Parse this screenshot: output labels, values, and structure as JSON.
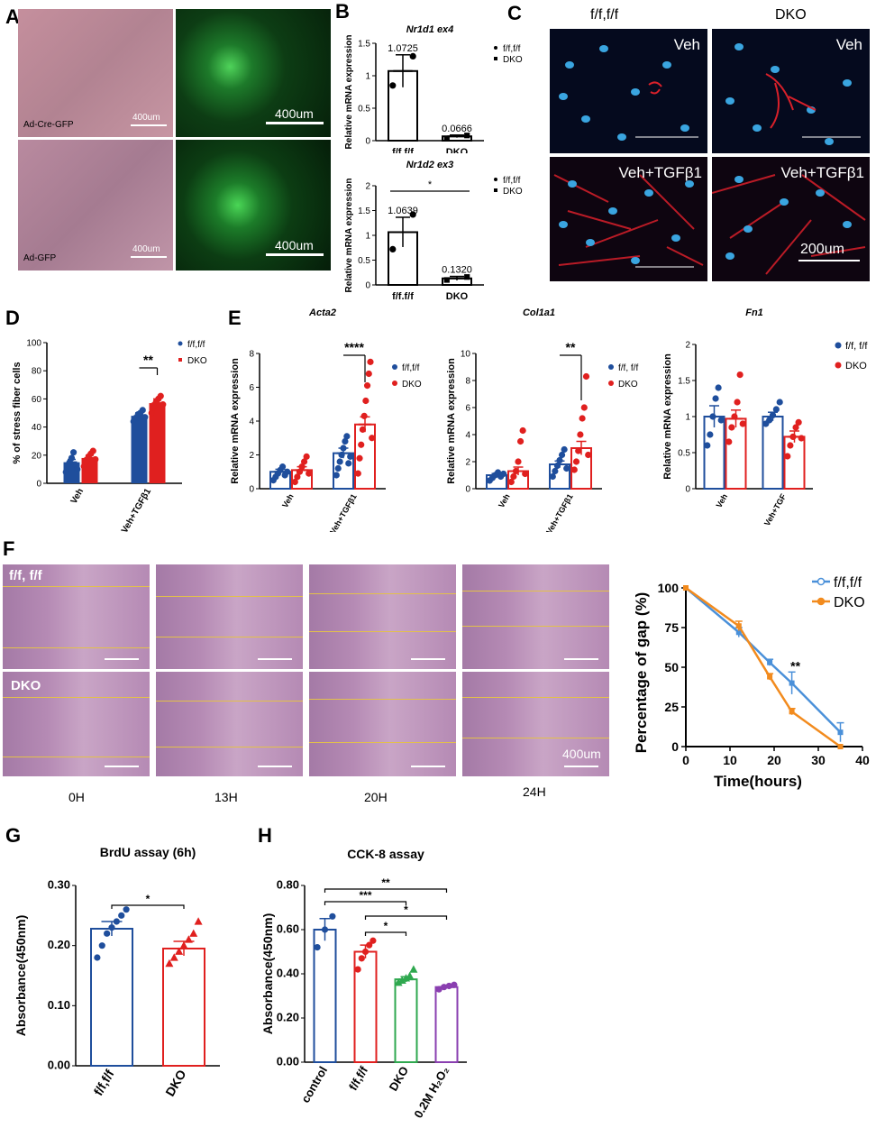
{
  "panel_letters": [
    "A",
    "B",
    "C",
    "D",
    "E",
    "F",
    "G",
    "H"
  ],
  "panel_a": {
    "tiles": [
      {
        "label": "Ad-Cre-GFP",
        "scale": "400um"
      },
      {
        "label": "",
        "scale": "400um"
      },
      {
        "label": "Ad-GFP",
        "scale": "400um"
      },
      {
        "label": "",
        "scale": "400um"
      }
    ]
  },
  "panel_c": {
    "col_headers": [
      "f/f,f/f",
      "DKO"
    ],
    "tiles": [
      {
        "label": "Veh",
        "scale": ""
      },
      {
        "label": "Veh",
        "scale": ""
      },
      {
        "label": "Veh+TGFβ1",
        "scale": ""
      },
      {
        "label": "Veh+TGFβ1",
        "scale": "200um"
      }
    ],
    "colors": {
      "stain_red": "#d8202a",
      "nuclei_blue": "#3aa5e0",
      "background": "#050a1e"
    }
  },
  "panel_f": {
    "row_labels": [
      "f/f, f/f",
      "DKO"
    ],
    "time_labels": [
      "0H",
      "13H",
      "20H",
      "24H"
    ],
    "scale": "400um",
    "colors": {
      "tissue": "#b58ab4",
      "line": "#e3c04a"
    }
  },
  "colors": {
    "blue": "#1f4e9c",
    "red": "#e0201f",
    "green": "#2fa84f",
    "purple": "#8a3fb0",
    "light_blue": "#4a90d9",
    "orange": "#f28b1e"
  },
  "chart_data": [
    {
      "id": "B-top",
      "type": "bar",
      "title": "Nr1d1 ex4",
      "categories": [
        "f/f,f/f",
        "DKO"
      ],
      "values": [
        1.0725,
        0.0666
      ],
      "data_labels": [
        "1.0725",
        "0.0666"
      ],
      "errors": [
        0.25,
        0.02
      ],
      "points": [
        [
          0.85,
          1.3
        ],
        [
          0.03,
          0.08
        ]
      ],
      "ylabel": "Relative mRNA expression",
      "ylim": [
        0,
        1.5
      ],
      "yticks": [
        0,
        0.5,
        1.0,
        1.5
      ],
      "legend": [
        "f/f,f/f",
        "DKO"
      ],
      "legend_position": "top-right",
      "significance": []
    },
    {
      "id": "B-bottom",
      "type": "bar",
      "title": "Nr1d2 ex3",
      "categories": [
        "f/f,f/f",
        "DKO"
      ],
      "values": [
        1.0639,
        0.132
      ],
      "data_labels": [
        "1.0639",
        "0.1320"
      ],
      "errors": [
        0.3,
        0.04
      ],
      "points": [
        [
          0.72,
          1.42
        ],
        [
          0.1,
          0.16
        ]
      ],
      "ylabel": "Relative mRNA expression",
      "ylim": [
        0,
        2.0
      ],
      "yticks": [
        0,
        0.5,
        1.0,
        1.5,
        2.0
      ],
      "legend": [
        "f/f,f/f",
        "DKO"
      ],
      "legend_position": "top-right",
      "significance": [
        {
          "from": 0,
          "to": 1,
          "text": "*"
        }
      ]
    },
    {
      "id": "D",
      "type": "bar",
      "categories": [
        "Veh",
        "Veh+TGFβ1"
      ],
      "series": [
        {
          "name": "f/f,f/f",
          "values": [
            15,
            48
          ],
          "errors": [
            2,
            2
          ],
          "points": [
            [
              8,
              12,
              15,
              18,
              22,
              13,
              10
            ],
            [
              44,
              46,
              49,
              50,
              52,
              47
            ]
          ]
        },
        {
          "name": "DKO",
          "values": [
            18,
            57
          ],
          "errors": [
            2,
            3
          ],
          "points": [
            [
              12,
              15,
              19,
              21,
              23,
              17
            ],
            [
              50,
              54,
              58,
              60,
              62,
              56
            ]
          ]
        }
      ],
      "ylabel": "% of stress fiber cells",
      "ylim": [
        0,
        100
      ],
      "yticks": [
        0,
        20,
        40,
        60,
        80,
        100
      ],
      "legend_position": "top-right",
      "significance": [
        {
          "group": 1,
          "text": "**"
        }
      ]
    },
    {
      "id": "E-Acta2",
      "type": "bar",
      "title": "Acta2",
      "categories": [
        "Veh",
        "Veh+TGFβ1"
      ],
      "series": [
        {
          "name": "f/f,f/f",
          "values": [
            1.0,
            2.1
          ],
          "errors": [
            0.15,
            0.3
          ],
          "points": [
            [
              0.5,
              0.7,
              0.9,
              1.1,
              1.3,
              0.8,
              1.0
            ],
            [
              0.8,
              1.2,
              1.6,
              2.0,
              2.4,
              2.8,
              3.1,
              1.5,
              1.9
            ]
          ]
        },
        {
          "name": "DKO",
          "values": [
            1.1,
            3.8
          ],
          "errors": [
            0.2,
            0.45
          ],
          "points": [
            [
              0.4,
              0.7,
              1.0,
              1.3,
              1.6,
              1.9,
              0.9
            ],
            [
              0.9,
              1.8,
              2.6,
              3.5,
              4.3,
              5.2,
              6.1,
              6.8,
              7.5,
              3.0
            ]
          ]
        }
      ],
      "ylabel": "Relative mRNA expression",
      "ylim": [
        0,
        8
      ],
      "yticks": [
        0,
        2,
        4,
        6,
        8
      ],
      "legend": [
        "f/f,f/f",
        "DKO"
      ],
      "legend_position": "top-right",
      "significance": [
        {
          "group": 1,
          "text": "****"
        }
      ]
    },
    {
      "id": "E-Col1a1",
      "type": "bar",
      "title": "Col1a1",
      "categories": [
        "Veh",
        "Veh+TGFβ1"
      ],
      "series": [
        {
          "name": "f/f, f/f",
          "values": [
            1.0,
            1.8
          ],
          "errors": [
            0.12,
            0.25
          ],
          "points": [
            [
              0.6,
              0.8,
              1.0,
              1.2,
              0.9,
              1.1
            ],
            [
              0.9,
              1.3,
              1.7,
              2.1,
              2.5,
              2.9,
              1.5
            ]
          ]
        },
        {
          "name": "DKO",
          "values": [
            1.3,
            3.0
          ],
          "errors": [
            0.3,
            0.5
          ],
          "points": [
            [
              0.5,
              0.9,
              1.3,
              2.0,
              3.5,
              4.3,
              1.1
            ],
            [
              1.4,
              2.0,
              2.8,
              4.0,
              5.2,
              6.0,
              8.3,
              2.5
            ]
          ]
        }
      ],
      "ylabel": "Relative mRNA expression",
      "ylim": [
        0,
        10
      ],
      "yticks": [
        0,
        2,
        4,
        6,
        8,
        10
      ],
      "legend": [
        "f/f, f/f",
        "DKO"
      ],
      "legend_position": "top-right",
      "significance": [
        {
          "group": 1,
          "text": "**"
        }
      ]
    },
    {
      "id": "E-Fn1",
      "type": "bar",
      "title": "Fn1",
      "categories": [
        "Veh",
        "Veh+TGF"
      ],
      "series": [
        {
          "name": "f/f, f/f",
          "values": [
            1.0,
            1.0
          ],
          "errors": [
            0.15,
            0.06
          ],
          "points": [
            [
              0.6,
              0.75,
              1.0,
              1.25,
              1.4,
              0.95
            ],
            [
              0.9,
              0.95,
              1.02,
              1.1,
              1.2
            ]
          ]
        },
        {
          "name": "DKO",
          "values": [
            0.97,
            0.72
          ],
          "errors": [
            0.12,
            0.08
          ],
          "points": [
            [
              0.65,
              0.85,
              1.0,
              1.2,
              1.58,
              0.9
            ],
            [
              0.45,
              0.6,
              0.72,
              0.85,
              0.92,
              0.7
            ]
          ]
        }
      ],
      "ylabel": "Relative mRNA expression",
      "ylim": [
        0,
        2.0
      ],
      "yticks": [
        0,
        0.5,
        1.0,
        1.5,
        2.0
      ],
      "legend": [
        "f/f, f/f",
        "DKO"
      ],
      "legend_position": "top-right",
      "significance": []
    },
    {
      "id": "F-line",
      "type": "line",
      "x": [
        0,
        12,
        20,
        24,
        36
      ],
      "series": [
        {
          "name": "f/f,f/f",
          "x": [
            0,
            12,
            19,
            24,
            35
          ],
          "values": [
            100,
            72,
            53,
            40,
            9
          ],
          "errors": [
            0,
            3,
            2,
            7,
            6
          ]
        },
        {
          "name": "DKO",
          "x": [
            0,
            12,
            19,
            24,
            35
          ],
          "values": [
            100,
            76,
            44,
            22,
            0
          ],
          "errors": [
            0,
            3,
            2,
            2,
            0
          ]
        }
      ],
      "xlabel": "Time(hours)",
      "ylabel": "Percentage of gap (%)",
      "xlim": [
        0,
        40
      ],
      "ylim": [
        0,
        100
      ],
      "xticks": [
        0,
        10,
        20,
        30,
        40
      ],
      "yticks": [
        0,
        25,
        50,
        75,
        100
      ],
      "legend_position": "top-right",
      "annotations": [
        {
          "x": 24,
          "y": 48,
          "text": "**"
        }
      ]
    },
    {
      "id": "G",
      "type": "bar",
      "title": "BrdU assay (6h)",
      "categories": [
        "f/f,f/f",
        "DKO"
      ],
      "values": [
        0.228,
        0.195
      ],
      "errors": [
        0.012,
        0.012
      ],
      "points": [
        [
          0.18,
          0.2,
          0.22,
          0.23,
          0.24,
          0.25,
          0.26
        ],
        [
          0.17,
          0.18,
          0.19,
          0.2,
          0.21,
          0.22,
          0.24
        ]
      ],
      "ylabel": "Absorbance(450nm)",
      "ylim": [
        0,
        0.3
      ],
      "yticks": [
        "0.00",
        "0.10",
        "0.20",
        "0.30"
      ],
      "significance": [
        {
          "from": 0,
          "to": 1,
          "text": "*"
        }
      ]
    },
    {
      "id": "H",
      "type": "bar",
      "title": "CCK-8 assay",
      "categories": [
        "control",
        "f/f,f/f",
        "DKO",
        "0.2M H₂O₂"
      ],
      "values": [
        0.6,
        0.5,
        0.375,
        0.34
      ],
      "errors": [
        0.05,
        0.03,
        0.012,
        0.006
      ],
      "points": [
        [
          0.52,
          0.6,
          0.66
        ],
        [
          0.42,
          0.47,
          0.5,
          0.53,
          0.55
        ],
        [
          0.36,
          0.37,
          0.38,
          0.39,
          0.42
        ],
        [
          0.33,
          0.34,
          0.345,
          0.35
        ]
      ],
      "ylabel": "Absorbance(450nm)",
      "ylim": [
        0,
        0.8
      ],
      "yticks": [
        "0.00",
        "0.20",
        "0.40",
        "0.60",
        "0.80"
      ],
      "significance": [
        {
          "from": 0,
          "to": 3,
          "text": "**"
        },
        {
          "from": 0,
          "to": 2,
          "text": "***"
        },
        {
          "from": 1,
          "to": 3,
          "text": "*"
        },
        {
          "from": 1,
          "to": 2,
          "text": "*"
        }
      ]
    }
  ]
}
